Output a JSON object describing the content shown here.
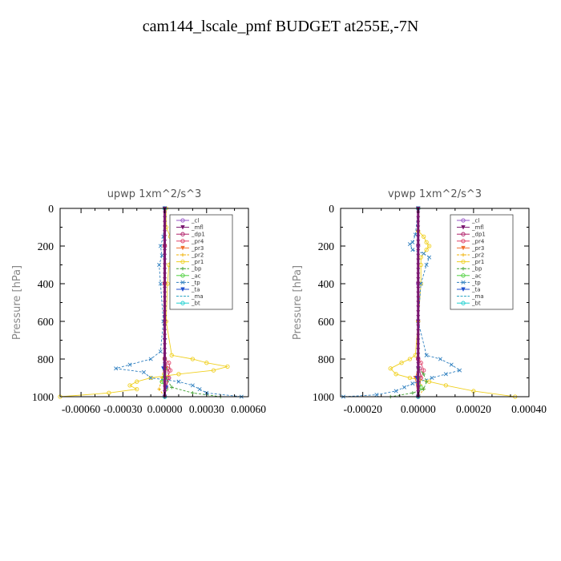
{
  "title": "cam144_lscale_pmf  BUDGET at255E,-7N",
  "legend": [
    {
      "label": "_cl",
      "color": "#9a55c9",
      "marker": "o"
    },
    {
      "label": "_mfl",
      "color": "#7a1670",
      "marker": "v"
    },
    {
      "label": "_dp1",
      "color": "#b0206a",
      "marker": "o"
    },
    {
      "label": "_pr4",
      "color": "#e0406a",
      "marker": "o"
    },
    {
      "label": "_pr3",
      "color": "#f07030",
      "marker": "v"
    },
    {
      "label": "_pr2",
      "color": "#f0b000",
      "marker": "+"
    },
    {
      "label": "_pr1",
      "color": "#f0d020",
      "marker": "o"
    },
    {
      "label": "_bp",
      "color": "#40a030",
      "marker": "+"
    },
    {
      "label": "_ac",
      "color": "#50d040",
      "marker": "o"
    },
    {
      "label": "_tp",
      "color": "#3080c0",
      "marker": "x"
    },
    {
      "label": "_ta",
      "color": "#2050d0",
      "marker": "v"
    },
    {
      "label": "_ma",
      "color": "#20a0c0",
      "marker": "-"
    },
    {
      "label": "_bt",
      "color": "#20d0d0",
      "marker": "o"
    }
  ],
  "chart_data": [
    {
      "type": "line",
      "title": "upwp   1xm^2/s^3",
      "ylabel": "Pressure [hPa]",
      "xlim": [
        -0.00075,
        0.0006
      ],
      "ylim": [
        1000,
        0
      ],
      "x_ticks": [
        -0.0006,
        -0.0003,
        0.0,
        0.0003,
        0.0006
      ],
      "x_tick_labels": [
        "-0.00060",
        "-0.00030",
        "0.00000",
        "0.00030",
        "0.00060"
      ],
      "y_ticks": [
        0,
        200,
        400,
        600,
        800,
        1000
      ],
      "y_tick_labels": [
        "0",
        "200",
        "400",
        "600",
        "800",
        "1000"
      ],
      "legend_position": "top-right",
      "series": [
        {
          "name": "_cl",
          "points": [
            [
              0,
              0
            ],
            [
              0,
              200
            ],
            [
              0,
              400
            ],
            [
              0,
              600
            ],
            [
              0,
              800
            ],
            [
              0,
              1000
            ]
          ]
        },
        {
          "name": "_mfl",
          "points": [
            [
              0,
              0
            ],
            [
              0,
              200
            ],
            [
              0,
              400
            ],
            [
              0,
              600
            ],
            [
              0,
              800
            ],
            [
              0,
              1000
            ]
          ]
        },
        {
          "name": "_dp1",
          "points": [
            [
              0,
              0
            ],
            [
              0,
              200
            ],
            [
              0,
              400
            ],
            [
              0,
              600
            ],
            [
              0,
              800
            ],
            [
              2e-05,
              850
            ],
            [
              3e-05,
              900
            ],
            [
              1e-05,
              950
            ],
            [
              0,
              1000
            ]
          ]
        },
        {
          "name": "_pr4",
          "points": [
            [
              0,
              0
            ],
            [
              0,
              200
            ],
            [
              0,
              400
            ],
            [
              0,
              600
            ],
            [
              0,
              800
            ],
            [
              3e-05,
              820
            ],
            [
              4e-05,
              860
            ],
            [
              2e-05,
              900
            ],
            [
              0,
              1000
            ]
          ]
        },
        {
          "name": "_pr3",
          "points": [
            [
              0,
              0
            ],
            [
              0,
              200
            ],
            [
              0,
              400
            ],
            [
              0,
              600
            ],
            [
              0,
              800
            ],
            [
              1e-05,
              850
            ],
            [
              0,
              1000
            ]
          ]
        },
        {
          "name": "_pr2",
          "points": [
            [
              0,
              0
            ],
            [
              0,
              800
            ],
            [
              -2e-05,
              900
            ],
            [
              -4e-05,
              960
            ],
            [
              0,
              1000
            ]
          ]
        },
        {
          "name": "_pr1",
          "points": [
            [
              1e-05,
              0
            ],
            [
              1e-05,
              100
            ],
            [
              4e-05,
              150
            ],
            [
              6e-05,
              200
            ],
            [
              5e-05,
              250
            ],
            [
              3e-05,
              300
            ],
            [
              2e-05,
              400
            ],
            [
              1e-05,
              600
            ],
            [
              5e-05,
              780
            ],
            [
              0.0002,
              800
            ],
            [
              0.0003,
              820
            ],
            [
              0.00045,
              840
            ],
            [
              0.00035,
              860
            ],
            [
              0.0001,
              880
            ],
            [
              -0.0001,
              900
            ],
            [
              -0.0002,
              920
            ],
            [
              -0.00025,
              940
            ],
            [
              -0.0002,
              960
            ],
            [
              -0.0004,
              980
            ],
            [
              -0.00075,
              1000
            ]
          ]
        },
        {
          "name": "_bp",
          "points": [
            [
              0,
              0
            ],
            [
              0,
              800
            ],
            [
              1e-05,
              900
            ],
            [
              5e-05,
              950
            ],
            [
              0.0002,
              980
            ],
            [
              0.0004,
              1000
            ]
          ]
        },
        {
          "name": "_ac",
          "points": [
            [
              0,
              0
            ],
            [
              0,
              850
            ],
            [
              -2e-05,
              920
            ],
            [
              1e-05,
              960
            ],
            [
              0,
              1000
            ]
          ]
        },
        {
          "name": "_tp",
          "points": [
            [
              0,
              0
            ],
            [
              -1e-05,
              150
            ],
            [
              -3e-05,
              200
            ],
            [
              -2e-05,
              250
            ],
            [
              -4e-05,
              300
            ],
            [
              -3e-05,
              400
            ],
            [
              -1e-05,
              600
            ],
            [
              -3e-05,
              760
            ],
            [
              -0.0001,
              800
            ],
            [
              -0.00025,
              830
            ],
            [
              -0.00035,
              850
            ],
            [
              -0.00015,
              870
            ],
            [
              -0.0001,
              900
            ],
            [
              0.0001,
              920
            ],
            [
              0.0002,
              940
            ],
            [
              0.00025,
              960
            ],
            [
              0.0003,
              980
            ],
            [
              0.00055,
              1000
            ]
          ]
        },
        {
          "name": "_ta",
          "points": [
            [
              0,
              0
            ],
            [
              0,
              700
            ],
            [
              -1e-05,
              850
            ],
            [
              1e-05,
              950
            ],
            [
              0,
              1000
            ]
          ]
        },
        {
          "name": "_ma",
          "points": [
            [
              0,
              0
            ],
            [
              0,
              1000
            ]
          ]
        },
        {
          "name": "_bt",
          "points": [
            [
              0,
              0
            ],
            [
              0,
              1000
            ]
          ]
        }
      ]
    },
    {
      "type": "line",
      "title": "vpwp   1xm^2/s^3",
      "ylabel": "Pressure [hPa]",
      "xlim": [
        -0.00028,
        0.0004
      ],
      "ylim": [
        1000,
        0
      ],
      "x_ticks": [
        -0.0002,
        0.0,
        0.0002,
        0.0004
      ],
      "x_tick_labels": [
        "-0.00020",
        "0.00000",
        "0.00020",
        "0.00040"
      ],
      "y_ticks": [
        0,
        200,
        400,
        600,
        800,
        1000
      ],
      "y_tick_labels": [
        "0",
        "200",
        "400",
        "600",
        "800",
        "1000"
      ],
      "legend_position": "top-right",
      "series": [
        {
          "name": "_cl",
          "points": [
            [
              0,
              0
            ],
            [
              0,
              200
            ],
            [
              0,
              400
            ],
            [
              0,
              600
            ],
            [
              0,
              800
            ],
            [
              0,
              1000
            ]
          ]
        },
        {
          "name": "_mfl",
          "points": [
            [
              0,
              0
            ],
            [
              0,
              200
            ],
            [
              0,
              400
            ],
            [
              0,
              600
            ],
            [
              0,
              800
            ],
            [
              0,
              1000
            ]
          ]
        },
        {
          "name": "_dp1",
          "points": [
            [
              0,
              0
            ],
            [
              0,
              800
            ],
            [
              5e-06,
              850
            ],
            [
              1e-05,
              900
            ],
            [
              0,
              1000
            ]
          ]
        },
        {
          "name": "_pr4",
          "points": [
            [
              0,
              0
            ],
            [
              0,
              800
            ],
            [
              1e-05,
              820
            ],
            [
              2e-05,
              860
            ],
            [
              1e-05,
              900
            ],
            [
              0,
              1000
            ]
          ]
        },
        {
          "name": "_pr3",
          "points": [
            [
              0,
              0
            ],
            [
              0,
              850
            ],
            [
              -1e-05,
              900
            ],
            [
              0,
              1000
            ]
          ]
        },
        {
          "name": "_pr2",
          "points": [
            [
              0,
              0
            ],
            [
              0,
              900
            ],
            [
              2e-05,
              960
            ],
            [
              0,
              1000
            ]
          ]
        },
        {
          "name": "_pr1",
          "points": [
            [
              0,
              0
            ],
            [
              0,
              120
            ],
            [
              2e-05,
              150
            ],
            [
              3e-05,
              180
            ],
            [
              4e-05,
              200
            ],
            [
              3e-05,
              220
            ],
            [
              1e-05,
              260
            ],
            [
              1e-05,
              300
            ],
            [
              1e-05,
              400
            ],
            [
              0,
              600
            ],
            [
              -1e-05,
              780
            ],
            [
              -3e-05,
              800
            ],
            [
              -6e-05,
              820
            ],
            [
              -0.0001,
              850
            ],
            [
              -8e-05,
              880
            ],
            [
              -3e-05,
              900
            ],
            [
              4e-05,
              920
            ],
            [
              0.0001,
              940
            ],
            [
              0.0002,
              970
            ],
            [
              0.00035,
              1000
            ]
          ]
        },
        {
          "name": "_bp",
          "points": [
            [
              0,
              0
            ],
            [
              0,
              850
            ],
            [
              2e-05,
              880
            ],
            [
              3e-05,
              920
            ],
            [
              2e-05,
              960
            ],
            [
              -2e-05,
              980
            ],
            [
              -0.0001,
              1000
            ]
          ]
        },
        {
          "name": "_ac",
          "points": [
            [
              0,
              0
            ],
            [
              0,
              900
            ],
            [
              1e-05,
              950
            ],
            [
              0,
              1000
            ]
          ]
        },
        {
          "name": "_tp",
          "points": [
            [
              0,
              0
            ],
            [
              -1e-05,
              140
            ],
            [
              -2e-05,
              180
            ],
            [
              -3e-05,
              190
            ],
            [
              -2e-05,
              220
            ],
            [
              2e-05,
              240
            ],
            [
              4e-05,
              260
            ],
            [
              3e-05,
              300
            ],
            [
              1e-05,
              400
            ],
            [
              0,
              600
            ],
            [
              3e-05,
              780
            ],
            [
              8e-05,
              800
            ],
            [
              0.00012,
              830
            ],
            [
              0.00015,
              860
            ],
            [
              0.0001,
              880
            ],
            [
              5e-05,
              900
            ],
            [
              -2e-05,
              930
            ],
            [
              -5e-05,
              950
            ],
            [
              -8e-05,
              970
            ],
            [
              -0.00015,
              990
            ],
            [
              -0.00027,
              1000
            ]
          ]
        },
        {
          "name": "_ta",
          "points": [
            [
              0,
              0
            ],
            [
              0,
              850
            ],
            [
              -5e-06,
              900
            ],
            [
              0,
              1000
            ]
          ]
        },
        {
          "name": "_ma",
          "points": [
            [
              0,
              0
            ],
            [
              0,
              1000
            ]
          ]
        },
        {
          "name": "_bt",
          "points": [
            [
              0,
              0
            ],
            [
              0,
              1000
            ]
          ]
        }
      ]
    }
  ]
}
